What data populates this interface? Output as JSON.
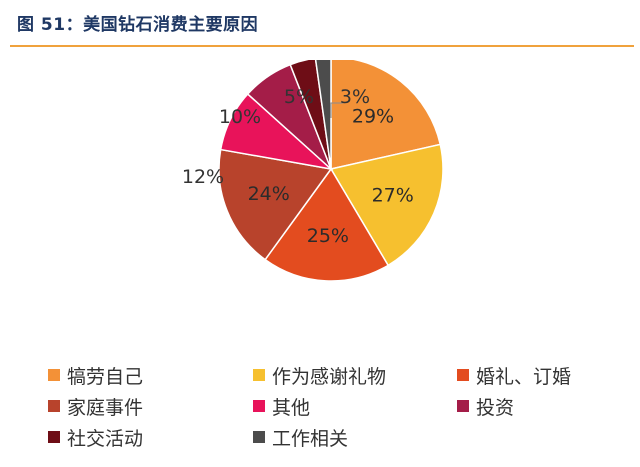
{
  "figure": {
    "title": "图 51：美国钻石消费主要原因",
    "accent_color": "#f0a23c",
    "title_color": "#1f3864"
  },
  "chart_data": {
    "type": "pie",
    "start_angle_deg": 0,
    "direction": "clockwise",
    "value_unit": "%",
    "slices": [
      {
        "label": "犒劳自己",
        "value": 29,
        "color": "#f39137"
      },
      {
        "label": "作为感谢礼物",
        "value": 27,
        "color": "#f6c02f"
      },
      {
        "label": "婚礼、订婚",
        "value": 25,
        "color": "#e34c1f"
      },
      {
        "label": "家庭事件",
        "value": 24,
        "color": "#b8432c"
      },
      {
        "label": "其他",
        "value": 12,
        "color": "#e8135a"
      },
      {
        "label": "投资",
        "value": 10,
        "color": "#a41d48"
      },
      {
        "label": "社交活动",
        "value": 5,
        "color": "#6e0d16"
      },
      {
        "label": "工作相关",
        "value": 3,
        "color": "#4c4c4c"
      }
    ],
    "legend_position": "bottom"
  }
}
